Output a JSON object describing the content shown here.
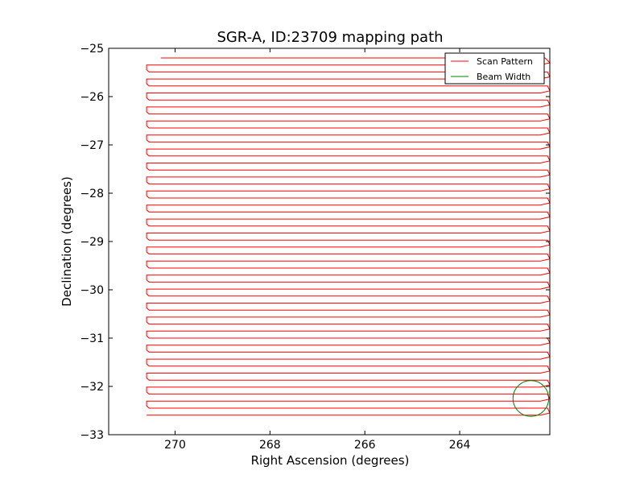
{
  "chart_data": {
    "type": "line",
    "title": "SGR-A, ID:23709 mapping path",
    "xlabel": "Right Ascension (degrees)",
    "ylabel": "Declination (degrees)",
    "xlim": [
      271.4,
      262.1
    ],
    "ylim": [
      -33,
      -25
    ],
    "x_ticks": [
      270,
      268,
      266,
      264
    ],
    "x_tick_labels": [
      "270",
      "268",
      "266",
      "264"
    ],
    "y_ticks": [
      -25,
      -26,
      -27,
      -28,
      -29,
      -30,
      -31,
      -32,
      -33
    ],
    "y_tick_labels": [
      "−25",
      "−26",
      "−27",
      "−28",
      "−29",
      "−30",
      "−31",
      "−32",
      "−33"
    ],
    "grid": false,
    "legend_position": "top-right",
    "legend": [
      {
        "label": "Scan Pattern",
        "color": "#ff0000"
      },
      {
        "label": "Beam Width",
        "color": "#008000"
      }
    ],
    "scan_pattern": {
      "color": "#ff0000",
      "start_dec": -25.2,
      "end_dec": -32.7,
      "row_spacing_deg": 0.29,
      "ra_east_edge": 270.6,
      "ra_west_edge": 262.1,
      "zigzag_offset_deg": 0.15
    },
    "beam_width": {
      "color": "#008000",
      "center_ra": 262.5,
      "center_dec": -32.25,
      "radius_deg": 0.37
    }
  }
}
